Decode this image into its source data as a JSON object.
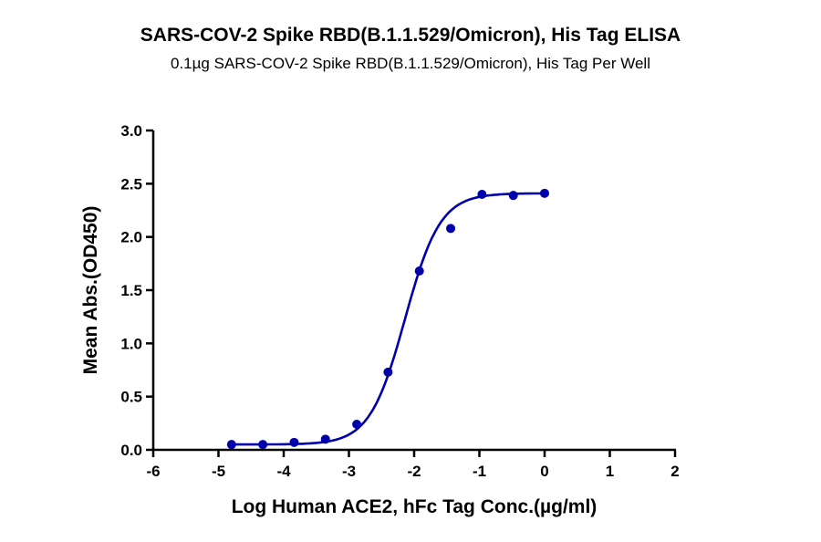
{
  "chart_data": {
    "type": "scatter",
    "title": "SARS-COV-2 Spike RBD(B.1.1.529/Omicron), His Tag ELISA",
    "subtitle": "0.1µg SARS-COV-2 Spike RBD(B.1.1.529/Omicron), His Tag Per Well",
    "xlabel": "Log Human ACE2, hFc Tag Conc.(µg/ml)",
    "ylabel": "Mean Abs.(OD450)",
    "xlim": [
      -6,
      2
    ],
    "ylim": [
      0,
      3.0
    ],
    "xticks": [
      "-6",
      "-5",
      "-4",
      "-3",
      "-2",
      "-1",
      "0",
      "1",
      "2"
    ],
    "yticks": [
      "0.0",
      "0.5",
      "1.0",
      "1.5",
      "2.0",
      "2.5",
      "3.0"
    ],
    "grid": false,
    "color": "#0000AA",
    "series": [
      {
        "name": "Mean Abs.(OD450)",
        "x": [
          -4.8,
          -4.32,
          -3.84,
          -3.36,
          -2.88,
          -2.4,
          -1.92,
          -1.44,
          -0.96,
          -0.48,
          0.0
        ],
        "y": [
          0.05,
          0.05,
          0.07,
          0.1,
          0.24,
          0.73,
          1.68,
          2.08,
          2.4,
          2.39,
          2.41
        ]
      }
    ],
    "fit": {
      "model": "4PL",
      "bottom": 0.05,
      "top": 2.41,
      "logEC50": -2.14,
      "hill": 1.61
    }
  }
}
